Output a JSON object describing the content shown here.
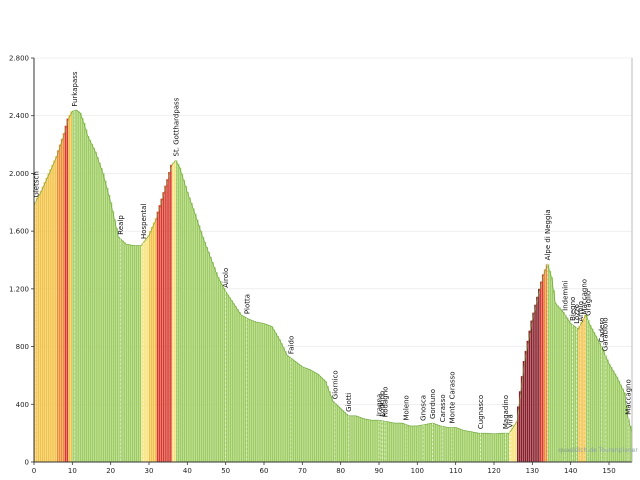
{
  "chart_data": {
    "type": "area",
    "title": "",
    "xlabel": "",
    "ylabel": "",
    "xlim": [
      0,
      156
    ],
    "ylim": [
      0,
      2800
    ],
    "x_ticks": [
      0,
      10,
      20,
      30,
      40,
      50,
      60,
      70,
      80,
      90,
      100,
      110,
      120,
      130,
      140,
      150
    ],
    "x_tick_labels": [
      "0",
      "10",
      "20",
      "30",
      "40",
      "50",
      "60",
      "70",
      "80",
      "90",
      "100",
      "110",
      "120",
      "130",
      "140",
      "150"
    ],
    "y_ticks": [
      0,
      400,
      800,
      1200,
      1600,
      2000,
      2400,
      2800
    ],
    "y_tick_labels": [
      "0",
      "400",
      "800",
      "1.200",
      "1.600",
      "2.000",
      "2.400",
      "2.800"
    ],
    "profile": {
      "x": [
        0,
        2,
        4,
        6,
        8,
        9,
        10,
        11,
        12,
        13,
        14,
        16,
        18,
        20,
        22,
        24,
        26,
        28,
        30,
        32,
        34,
        35,
        36,
        37,
        38,
        40,
        42,
        44,
        46,
        48,
        50,
        52,
        54,
        56,
        58,
        60,
        62,
        64,
        66,
        68,
        70,
        72,
        74,
        76,
        78,
        80,
        82,
        84,
        86,
        88,
        90,
        92,
        94,
        96,
        98,
        100,
        102,
        104,
        106,
        108,
        110,
        112,
        114,
        116,
        118,
        120,
        122,
        124,
        126,
        128,
        130,
        132,
        133,
        134,
        135,
        136,
        138,
        140,
        142,
        144,
        145,
        146,
        148,
        150,
        152,
        154,
        155,
        156
      ],
      "y": [
        1780,
        1880,
        2000,
        2120,
        2280,
        2380,
        2430,
        2440,
        2420,
        2350,
        2260,
        2150,
        2000,
        1800,
        1560,
        1510,
        1500,
        1500,
        1570,
        1690,
        1870,
        1960,
        2060,
        2090,
        2040,
        1870,
        1720,
        1560,
        1420,
        1280,
        1180,
        1100,
        1020,
        990,
        970,
        960,
        940,
        850,
        740,
        700,
        660,
        640,
        610,
        560,
        420,
        370,
        320,
        320,
        300,
        290,
        290,
        280,
        270,
        270,
        250,
        250,
        260,
        270,
        250,
        240,
        240,
        220,
        210,
        200,
        200,
        195,
        200,
        200,
        280,
        700,
        980,
        1200,
        1300,
        1370,
        1280,
        1100,
        1040,
        960,
        920,
        1020,
        950,
        900,
        800,
        680,
        590,
        480,
        300,
        200
      ]
    },
    "places": [
      {
        "name": "Gletsch",
        "km": 0.5
      },
      {
        "name": "Furkapass",
        "km": 10.5
      },
      {
        "name": "Realp",
        "km": 22.5
      },
      {
        "name": "Hospental",
        "km": 28.5
      },
      {
        "name": "St. Gotthardpass",
        "km": 37
      },
      {
        "name": "Airolo",
        "km": 50
      },
      {
        "name": "Piotta",
        "km": 55.5
      },
      {
        "name": "Faido",
        "km": 67
      },
      {
        "name": "Giornico",
        "km": 78.5
      },
      {
        "name": "Giotti",
        "km": 82
      },
      {
        "name": "Iragna",
        "km": 90
      },
      {
        "name": "Lodrino",
        "km": 90.8
      },
      {
        "name": "Rodagno",
        "km": 91.6
      },
      {
        "name": "Moleno",
        "km": 97
      },
      {
        "name": "Gnosca",
        "km": 101.5
      },
      {
        "name": "Gorduno",
        "km": 104
      },
      {
        "name": "Carasso",
        "km": 106.5
      },
      {
        "name": "Monte Carasso",
        "km": 109
      },
      {
        "name": "Cugnasco",
        "km": 116.5
      },
      {
        "name": "Magadino",
        "km": 123
      },
      {
        "name": "Vira",
        "km": 124.2
      },
      {
        "name": "Alpe di Neggia",
        "km": 134
      },
      {
        "name": "Indemini",
        "km": 138.5
      },
      {
        "name": "Biegno",
        "km": 140.5
      },
      {
        "name": "Lozzo",
        "km": 141.5
      },
      {
        "name": "Armio",
        "km": 142.5
      },
      {
        "name": "Maccagno",
        "km": 143.5
      },
      {
        "name": "Graglio",
        "km": 144.5
      },
      {
        "name": "Cadero",
        "km": 148
      },
      {
        "name": "Garabiolo",
        "km": 149
      },
      {
        "name": "Maccagno",
        "km": 155
      }
    ],
    "gradient_colors": {
      "flat": "#9ccc5f",
      "moderate": "#f7e27a",
      "steep": "#f2c246",
      "very_steep": "#ee8c35",
      "extreme": "#d8392c",
      "max": "#8a1e2a"
    },
    "credit": "quaeldich.de Tourenplaner"
  }
}
